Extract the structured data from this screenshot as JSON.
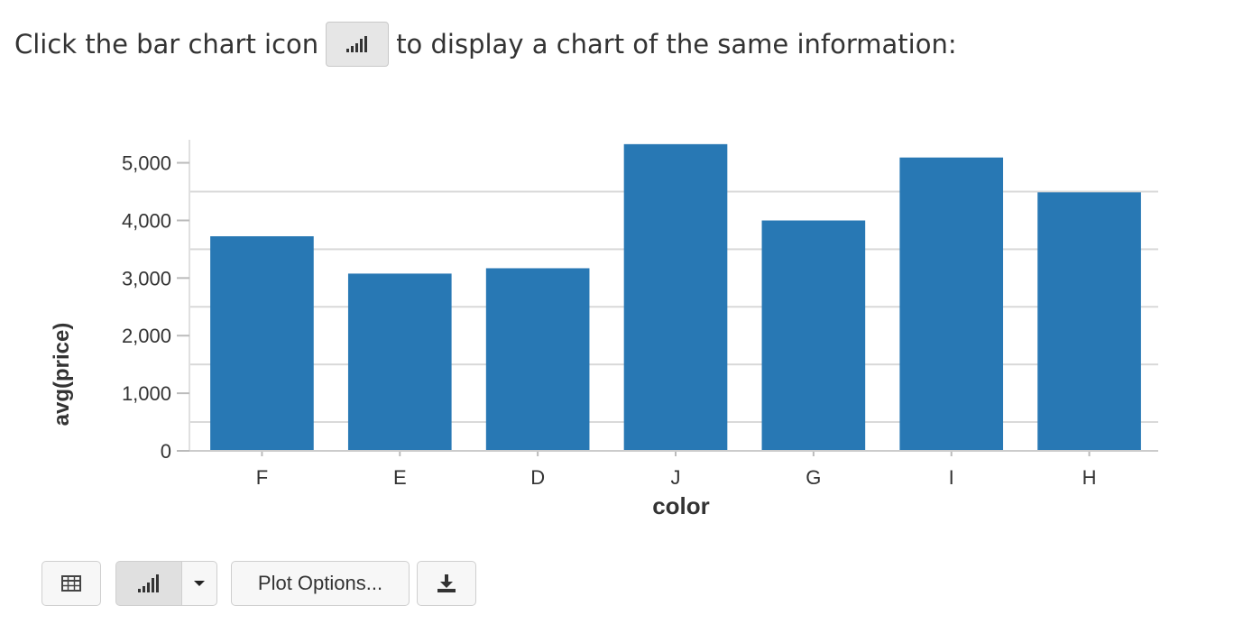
{
  "intro": {
    "text_before": "Click the bar chart icon",
    "text_after": "to display a chart of the same information:",
    "icon": "bar-chart-icon"
  },
  "chart_data": {
    "type": "bar",
    "title": "",
    "xlabel": "color",
    "ylabel": "avg(price)",
    "categories": [
      "F",
      "E",
      "D",
      "J",
      "G",
      "I",
      "H"
    ],
    "values": [
      3725,
      3077,
      3170,
      5324,
      3999,
      5092,
      4487
    ],
    "ylim": [
      0,
      5400
    ],
    "yticks": [
      0,
      1000,
      2000,
      3000,
      4000,
      5000
    ],
    "ytick_labels": [
      "0",
      "1,000",
      "2,000",
      "3,000",
      "4,000",
      "5,000"
    ],
    "grid": true,
    "bar_color": "#2878b4"
  },
  "toolbar": {
    "table_icon": "table-icon",
    "chart_icon": "bar-chart-icon",
    "dropdown_icon": "caret-down-icon",
    "plot_options_label": "Plot Options...",
    "download_icon": "download-icon"
  }
}
